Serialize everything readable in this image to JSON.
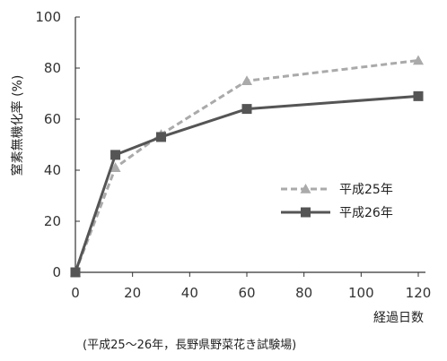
{
  "chart_data": {
    "type": "line",
    "title": "",
    "xlabel": "経過日数",
    "ylabel": "窒素無機化率 (%)",
    "source_note": "(平成25〜26年，長野県野菜花き試験場)",
    "xlim": [
      0,
      120
    ],
    "ylim": [
      0,
      100
    ],
    "x_ticks": [
      0,
      20,
      40,
      60,
      80,
      100,
      120
    ],
    "y_ticks": [
      0,
      20,
      40,
      60,
      80,
      100
    ],
    "grid": false,
    "legend_position": "middle-right",
    "series": [
      {
        "name": "平成25年",
        "marker": "triangle",
        "line_style": "dashed",
        "color": "#aaaaaa",
        "points": [
          [
            0,
            0
          ],
          [
            14,
            41
          ],
          [
            30,
            54
          ],
          [
            60,
            75
          ],
          [
            120,
            83
          ]
        ]
      },
      {
        "name": "平成26年",
        "marker": "square",
        "line_style": "solid",
        "color": "#555555",
        "points": [
          [
            0,
            0
          ],
          [
            14,
            46
          ],
          [
            30,
            53
          ],
          [
            60,
            64
          ],
          [
            120,
            69
          ]
        ]
      }
    ]
  }
}
